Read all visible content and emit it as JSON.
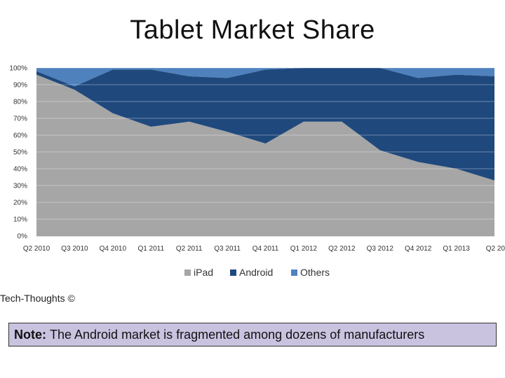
{
  "slide": {
    "title": "Tablet Market Share",
    "credit": "Tech-Thoughts ©",
    "note_label": "Note:",
    "note_text": "The Android market is fragmented among dozens of manufacturers"
  },
  "chart_data": {
    "type": "area",
    "stacked": true,
    "categories": [
      "Q2 2010",
      "Q3 2010",
      "Q4 2010",
      "Q1 2011",
      "Q2 2011",
      "Q3 2011",
      "Q4 2011",
      "Q1 2012",
      "Q2 2012",
      "Q3 2012",
      "Q4 2012",
      "Q1 2013",
      "Q2 20"
    ],
    "series": [
      {
        "name": "iPad",
        "color": "#a6a6a6",
        "values": [
          96,
          87,
          73,
          65,
          68,
          62,
          55,
          68,
          68,
          51,
          44,
          40,
          33
        ]
      },
      {
        "name": "Android",
        "color": "#1f497d",
        "values": [
          2,
          2,
          26,
          34,
          27,
          32,
          44,
          32,
          32,
          49,
          50,
          56,
          62
        ]
      },
      {
        "name": "Others",
        "color": "#4f81bd",
        "values": [
          2,
          11,
          1,
          1,
          5,
          6,
          1,
          0,
          0,
          0,
          6,
          4,
          5
        ]
      }
    ],
    "yticks": [
      "0%",
      "10%",
      "20%",
      "30%",
      "40%",
      "50%",
      "60%",
      "70%",
      "80%",
      "90%",
      "100%"
    ],
    "ylim": [
      0,
      100
    ],
    "grid": true,
    "legend": "bottom"
  }
}
